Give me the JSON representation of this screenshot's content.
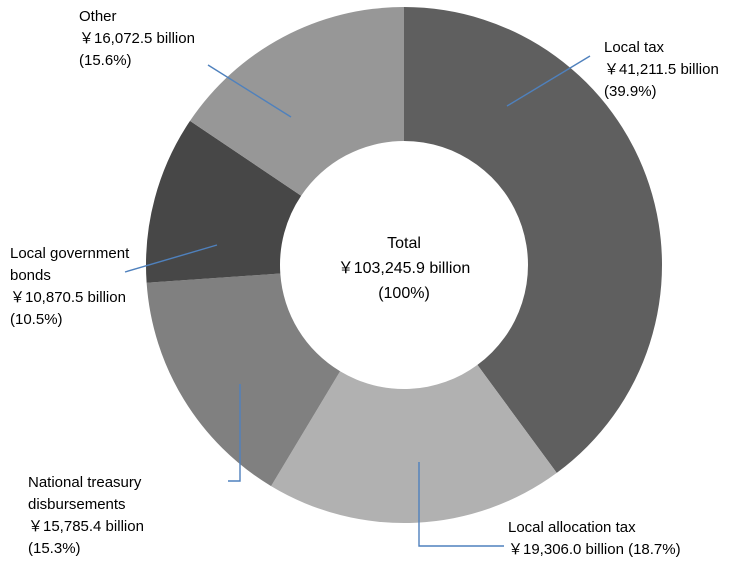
{
  "chart_data": {
    "type": "pie",
    "variant": "donut",
    "grid": false,
    "legend": "none",
    "slices": [
      {
        "category": "Local tax",
        "value": 41211.5,
        "percent": 39.9,
        "color": "#5f5f5f",
        "label_lines": [
          "Local tax",
          "￥41,211.5 billion",
          "(39.9%)"
        ]
      },
      {
        "category": "Local allocation tax",
        "value": 19306.0,
        "percent": 18.7,
        "color": "#b1b1b1",
        "label_lines": [
          "Local allocation tax",
          "￥19,306.0 billion (18.7%)"
        ]
      },
      {
        "category": "National treasury disbursements",
        "value": 15785.4,
        "percent": 15.3,
        "color": "#808080",
        "label_lines": [
          "National treasury",
          "disbursements",
          "￥15,785.4 billion",
          "(15.3%)"
        ]
      },
      {
        "category": "Local government bonds",
        "value": 10870.5,
        "percent": 10.5,
        "color": "#474747",
        "label_lines": [
          "Local government",
          "bonds",
          "￥10,870.5 billion",
          "(10.5%)"
        ]
      },
      {
        "category": "Other",
        "value": 16072.5,
        "percent": 15.6,
        "color": "#979797",
        "label_lines": [
          "Other",
          "￥16,072.5 billion",
          "(15.6%)"
        ]
      }
    ],
    "center_label": {
      "lines": [
        "Total",
        "￥103,245.9 billion",
        "(100%)"
      ]
    },
    "leader_line_color": "#4f81bd"
  }
}
